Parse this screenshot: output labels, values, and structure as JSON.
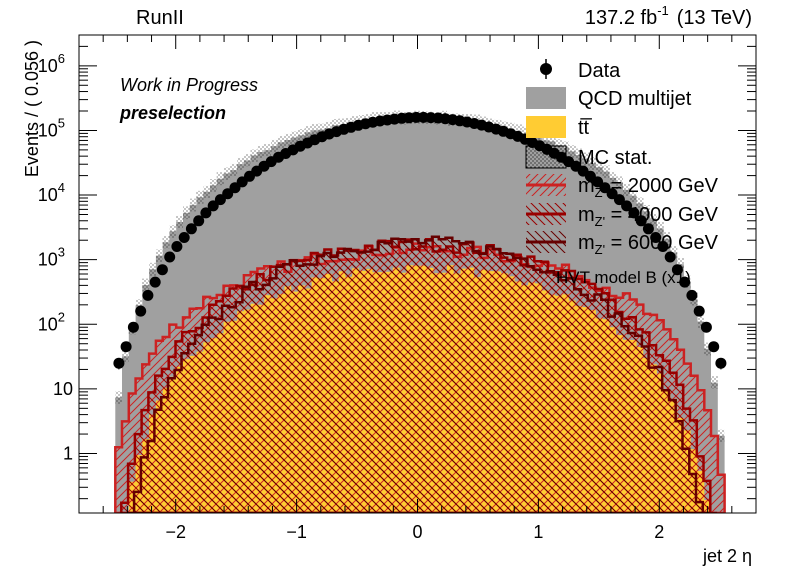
{
  "header": {
    "run_label": "RunII",
    "lumi_label": "137.2 fb",
    "lumi_exp": "-1",
    "energy_label": "(13 TeV)"
  },
  "annotations": {
    "status": "Work in Progress",
    "selection": "preselection"
  },
  "legend": {
    "data": "Data",
    "qcd": "QCD multijet",
    "ttbar": "tt̅",
    "mcstat": "MC stat.",
    "signal_prefix": "m",
    "signal_sub": "Z'",
    "signals": [
      " = 2000 GeV",
      " = 4000 GeV",
      " = 6000 GeV"
    ],
    "model": "HVT model B (x1)"
  },
  "axes": {
    "xlabel": "jet 2  η",
    "ylabel": "Events / ( 0.056 )"
  },
  "colors": {
    "data": "#000000",
    "qcd": "#a0a0a0",
    "ttbar": "#ffcc33",
    "sig2000": "#cc2222",
    "sig4000": "#990000",
    "sig6000": "#660000"
  },
  "chart_data": {
    "type": "bar",
    "x_range": [
      -2.8,
      2.8
    ],
    "y_range": [
      0.12,
      3000000
    ],
    "y_scale": "log",
    "bin_width": 0.056,
    "x_ticks": [
      -2,
      -1,
      0,
      1,
      2
    ],
    "y_ticks": [
      {
        "v": 1,
        "l": "1",
        "e": ""
      },
      {
        "v": 10,
        "l": "10",
        "e": ""
      },
      {
        "v": 100,
        "l": "10",
        "e": "2"
      },
      {
        "v": 1000,
        "l": "10",
        "e": "3"
      },
      {
        "v": 10000,
        "l": "10",
        "e": "4"
      },
      {
        "v": 100000,
        "l": "10",
        "e": "5"
      },
      {
        "v": 1000000,
        "l": "10",
        "e": "6"
      }
    ],
    "data_points": [
      [
        -2.47,
        25
      ],
      [
        -2.41,
        45
      ],
      [
        -2.35,
        90
      ],
      [
        -2.29,
        160
      ],
      [
        -2.23,
        280
      ],
      [
        -2.17,
        450
      ],
      [
        -2.11,
        700
      ],
      [
        -2.05,
        1100
      ],
      [
        -1.99,
        1600
      ],
      [
        -1.93,
        2200
      ],
      [
        -1.87,
        3000
      ],
      [
        -1.81,
        4000
      ],
      [
        -1.75,
        5300
      ],
      [
        -1.69,
        6800
      ],
      [
        -1.63,
        8500
      ],
      [
        -1.57,
        10500
      ],
      [
        -1.51,
        13000
      ],
      [
        -1.45,
        16000
      ],
      [
        -1.39,
        19500
      ],
      [
        -1.33,
        23500
      ],
      [
        -1.27,
        28000
      ],
      [
        -1.21,
        33000
      ],
      [
        -1.15,
        38500
      ],
      [
        -1.09,
        44000
      ],
      [
        -1.03,
        50000
      ],
      [
        -0.97,
        57000
      ],
      [
        -0.91,
        64000
      ],
      [
        -0.85,
        72000
      ],
      [
        -0.79,
        80000
      ],
      [
        -0.73,
        88000
      ],
      [
        -0.67,
        96000
      ],
      [
        -0.61,
        104000
      ],
      [
        -0.55,
        112000
      ],
      [
        -0.49,
        120000
      ],
      [
        -0.43,
        127000
      ],
      [
        -0.37,
        134000
      ],
      [
        -0.31,
        140000
      ],
      [
        -0.25,
        145000
      ],
      [
        -0.19,
        150000
      ],
      [
        -0.13,
        154000
      ],
      [
        -0.07,
        157000
      ],
      [
        -0.01,
        159000
      ],
      [
        0.05,
        159000
      ],
      [
        0.11,
        158000
      ],
      [
        0.17,
        156000
      ],
      [
        0.23,
        152000
      ],
      [
        0.29,
        147000
      ],
      [
        0.35,
        141000
      ],
      [
        0.41,
        135000
      ],
      [
        0.47,
        128000
      ],
      [
        0.53,
        121000
      ],
      [
        0.59,
        113000
      ],
      [
        0.65,
        105000
      ],
      [
        0.71,
        97000
      ],
      [
        0.77,
        89000
      ],
      [
        0.83,
        81000
      ],
      [
        0.89,
        73000
      ],
      [
        0.95,
        65000
      ],
      [
        1.01,
        58000
      ],
      [
        1.07,
        51000
      ],
      [
        1.13,
        44500
      ],
      [
        1.19,
        38500
      ],
      [
        1.25,
        33000
      ],
      [
        1.31,
        28000
      ],
      [
        1.37,
        23500
      ],
      [
        1.43,
        19500
      ],
      [
        1.49,
        16000
      ],
      [
        1.55,
        13000
      ],
      [
        1.61,
        10500
      ],
      [
        1.67,
        8500
      ],
      [
        1.73,
        6800
      ],
      [
        1.79,
        5300
      ],
      [
        1.85,
        4000
      ],
      [
        1.91,
        3000
      ],
      [
        1.97,
        2200
      ],
      [
        2.03,
        1600
      ],
      [
        2.09,
        1100
      ],
      [
        2.15,
        700
      ],
      [
        2.21,
        450
      ],
      [
        2.27,
        280
      ],
      [
        2.33,
        160
      ],
      [
        2.39,
        90
      ],
      [
        2.45,
        45
      ],
      [
        2.51,
        25
      ]
    ],
    "qcd_peak": 160000,
    "qcd_x_range": [
      -2.5,
      2.5
    ],
    "ttbar_peak": 750,
    "ttbar_x_range": [
      -2.5,
      2.5
    ],
    "signals": [
      {
        "mass": 2000,
        "peak": 1450,
        "x_range": [
          -2.5,
          2.5
        ]
      },
      {
        "mass": 4000,
        "peak": 1750,
        "x_range": [
          -2.45,
          2.45
        ]
      },
      {
        "mass": 6000,
        "peak": 1900,
        "x_range": [
          -2.4,
          2.4
        ]
      }
    ]
  }
}
